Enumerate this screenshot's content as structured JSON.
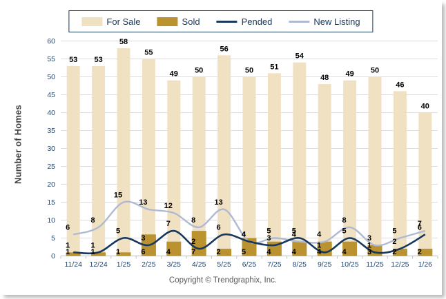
{
  "legend": {
    "items": [
      {
        "label": "For Sale",
        "swatch": "bar",
        "color": "#F0E1C3"
      },
      {
        "label": "Sold",
        "swatch": "bar",
        "color": "#BA9230"
      },
      {
        "label": "Pended",
        "swatch": "line",
        "color": "#17375D"
      },
      {
        "label": "New Listing",
        "swatch": "line",
        "color": "#AFB9D1"
      }
    ]
  },
  "y_axis": {
    "title": "Number of Homes"
  },
  "footer": {
    "copyright": "Copyright © Trendgraphix, Inc."
  },
  "chart_data": {
    "type": "bar",
    "title": "",
    "xlabel": "",
    "ylabel": "Number of Homes",
    "ylim": [
      0,
      60
    ],
    "ytick_step": 5,
    "grid": true,
    "legend_position": "top",
    "categories": [
      "11/24",
      "12/24",
      "1/25",
      "2/25",
      "3/25",
      "4/25",
      "5/25",
      "6/25",
      "7/25",
      "8/25",
      "9/25",
      "10/25",
      "11/25",
      "12/25",
      "1/26"
    ],
    "series": [
      {
        "name": "For Sale",
        "type": "bar",
        "color": "#F0E1C3",
        "values": [
          53,
          53,
          58,
          55,
          49,
          50,
          56,
          50,
          51,
          54,
          48,
          49,
          50,
          46,
          40
        ]
      },
      {
        "name": "Sold",
        "type": "bar",
        "color": "#BA9230",
        "values": [
          1,
          1,
          1,
          6,
          4,
          7,
          2,
          5,
          4,
          4,
          4,
          4,
          3,
          2,
          2
        ]
      },
      {
        "name": "Pended",
        "type": "line",
        "color": "#17375D",
        "values": [
          1,
          1,
          5,
          3,
          7,
          2,
          6,
          4,
          3,
          5,
          1,
          5,
          1,
          2,
          6
        ]
      },
      {
        "name": "New Listing",
        "type": "line",
        "color": "#AFB9D1",
        "values": [
          6,
          8,
          15,
          13,
          12,
          8,
          13,
          4,
          5,
          4,
          4,
          8,
          3,
          5,
          7
        ]
      }
    ],
    "colors": {
      "grid": "#DCDCDC",
      "axis": "#BFBFBF",
      "tick_text": "#24456B",
      "data_label": "#000000"
    }
  }
}
